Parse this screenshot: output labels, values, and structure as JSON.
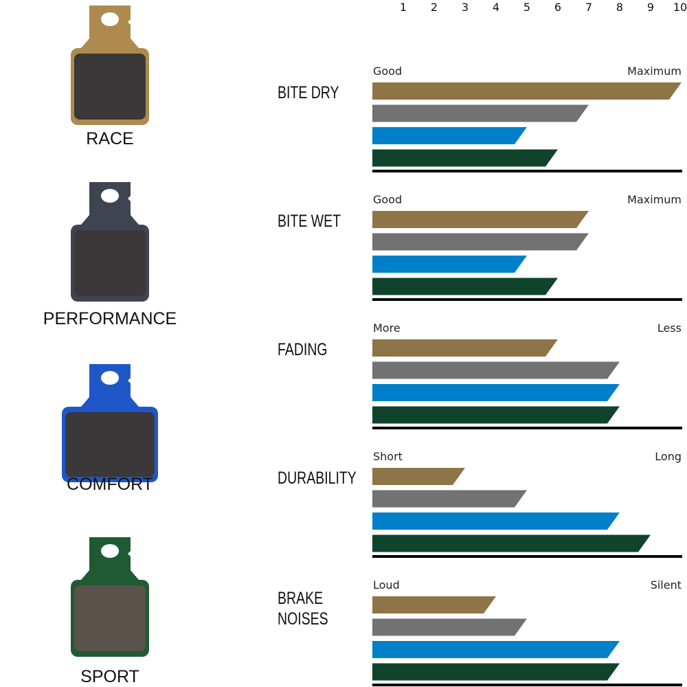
{
  "chart_data": {
    "type": "bar",
    "orientation": "horizontal",
    "xlim": [
      0,
      10
    ],
    "x_ticks": [
      "1",
      "2",
      "3",
      "4",
      "5",
      "6",
      "7",
      "8",
      "9",
      "10"
    ],
    "series": [
      {
        "name": "RACE",
        "color": "#8f7447"
      },
      {
        "name": "PERFORMANCE",
        "color": "#737272"
      },
      {
        "name": "COMFORT",
        "color": "#0080c9"
      },
      {
        "name": "SPORT",
        "color": "#0f432c"
      }
    ],
    "pad_colors": {
      "RACE": "#ad8a4e",
      "PERFORMANCE": "#3f4452",
      "COMFORT": "#1f57c9",
      "SPORT": "#1f5a33"
    },
    "categories": [
      {
        "title": [
          "BITE DRY"
        ],
        "low": "Good",
        "high": "Maximum",
        "values": [
          10,
          7,
          5,
          6
        ]
      },
      {
        "title": [
          "BITE WET"
        ],
        "low": "Good",
        "high": "Maximum",
        "values": [
          7,
          7,
          5,
          6
        ]
      },
      {
        "title": [
          "FADING"
        ],
        "low": "More",
        "high": "Less",
        "values": [
          6,
          8,
          8,
          8
        ]
      },
      {
        "title": [
          "DURABILITY"
        ],
        "low": "Short",
        "high": "Long",
        "values": [
          3,
          5,
          8,
          9
        ]
      },
      {
        "title": [
          "BRAKE",
          "NOISES"
        ],
        "low": "Loud",
        "high": "Silent",
        "values": [
          4,
          5,
          8,
          8
        ]
      }
    ]
  }
}
